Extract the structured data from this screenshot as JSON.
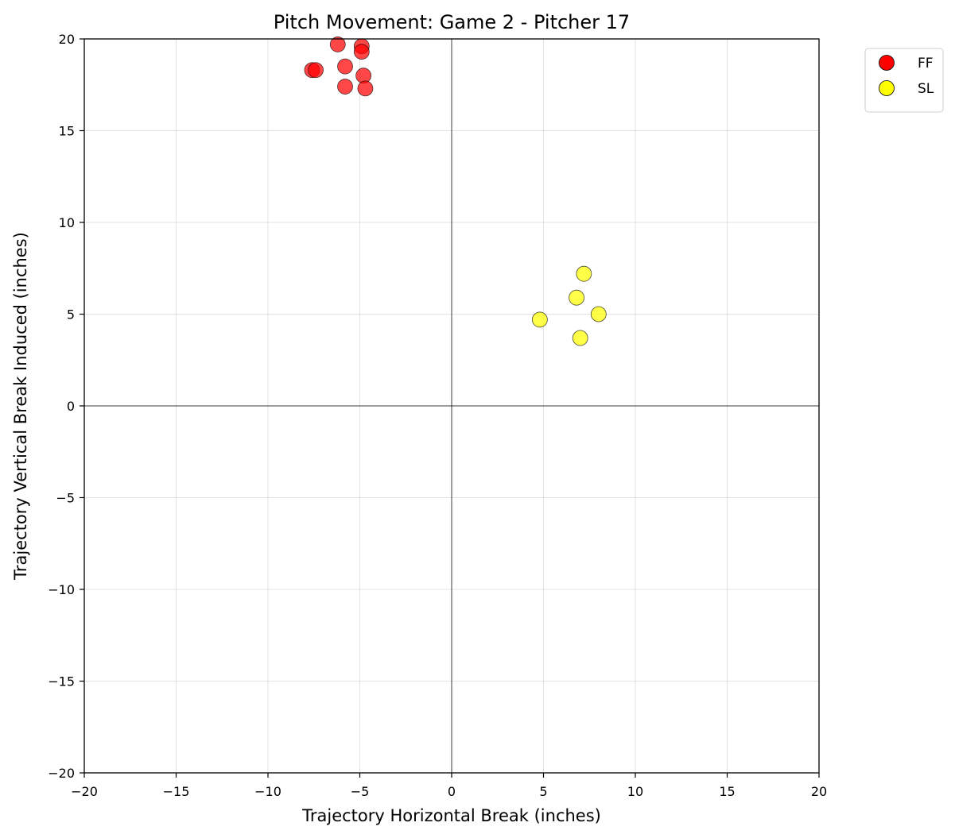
{
  "chart_data": {
    "type": "scatter",
    "title": "Pitch Movement: Game 2 - Pitcher 17",
    "xlabel": "Trajectory Horizontal Break (inches)",
    "ylabel": "Trajectory Vertical Break Induced (inches)",
    "xlim": [
      -20,
      20
    ],
    "ylim": [
      -20,
      20
    ],
    "xticks": [
      -20,
      -15,
      -10,
      -5,
      0,
      5,
      10,
      15,
      20
    ],
    "yticks": [
      -20,
      -15,
      -10,
      -5,
      0,
      5,
      10,
      15,
      20
    ],
    "xtick_labels": [
      "−20",
      "−15",
      "−10",
      "−5",
      "0",
      "5",
      "10",
      "15",
      "20"
    ],
    "ytick_labels": [
      "−20",
      "−15",
      "−10",
      "−5",
      "0",
      "5",
      "10",
      "15",
      "20"
    ],
    "grid": true,
    "zero_lines": true,
    "legend_position": "outside-top-right",
    "series": [
      {
        "name": "FF",
        "color": "#ff0000",
        "points": [
          {
            "x": -7.6,
            "y": 18.3
          },
          {
            "x": -7.4,
            "y": 18.3
          },
          {
            "x": -6.2,
            "y": 19.7
          },
          {
            "x": -5.8,
            "y": 18.5
          },
          {
            "x": -5.8,
            "y": 17.4
          },
          {
            "x": -4.9,
            "y": 19.6
          },
          {
            "x": -4.9,
            "y": 19.3
          },
          {
            "x": -4.8,
            "y": 18.0
          },
          {
            "x": -4.7,
            "y": 17.3
          }
        ]
      },
      {
        "name": "SL",
        "color": "#ffff00",
        "points": [
          {
            "x": 4.8,
            "y": 4.7
          },
          {
            "x": 6.8,
            "y": 5.9
          },
          {
            "x": 7.0,
            "y": 3.7
          },
          {
            "x": 7.2,
            "y": 7.2
          },
          {
            "x": 8.0,
            "y": 5.0
          }
        ]
      }
    ]
  }
}
